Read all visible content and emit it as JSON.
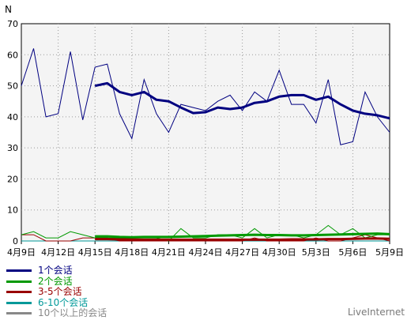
{
  "chart_data": {
    "type": "line",
    "ylabel": "N",
    "ylim": [
      0,
      70
    ],
    "yticks": [
      0,
      10,
      20,
      30,
      40,
      50,
      60,
      70
    ],
    "x_count": 31,
    "x_ticks": [
      {
        "i": 0,
        "label": "4月9日"
      },
      {
        "i": 3,
        "label": "4月12日"
      },
      {
        "i": 6,
        "label": "4月15日"
      },
      {
        "i": 9,
        "label": "4月18日"
      },
      {
        "i": 12,
        "label": "4月21日"
      },
      {
        "i": 15,
        "label": "4月24日"
      },
      {
        "i": 18,
        "label": "4月27日"
      },
      {
        "i": 21,
        "label": "4月30日"
      },
      {
        "i": 24,
        "label": "5月3日"
      },
      {
        "i": 27,
        "label": "5月6日"
      },
      {
        "i": 30,
        "label": "5月9日"
      }
    ],
    "grid": true,
    "legend_position": "bottom-left",
    "series": [
      {
        "name": "1个会话",
        "color": "#000080",
        "values": [
          50,
          62,
          40,
          41,
          61,
          39,
          56,
          57,
          41,
          33,
          52,
          41,
          35,
          44,
          43,
          42,
          45,
          47,
          42,
          48,
          45,
          55,
          44,
          44,
          38,
          52,
          31,
          32,
          48,
          40,
          35
        ]
      },
      {
        "name": "2个会话",
        "color": "#009900",
        "values": [
          2,
          3,
          1,
          1,
          3,
          2,
          1,
          1,
          1,
          1,
          1,
          1,
          0,
          4,
          1,
          1,
          2,
          2,
          1,
          4,
          1,
          2,
          2,
          1,
          2,
          5,
          2,
          4,
          1,
          2,
          2
        ]
      },
      {
        "name": "3-5个会话",
        "color": "#990000",
        "values": [
          2,
          2,
          0,
          0,
          0,
          1,
          1,
          1,
          0,
          0,
          0,
          0,
          0,
          0,
          0,
          0,
          0,
          0,
          0,
          1,
          0,
          0,
          0,
          0,
          1,
          0,
          0,
          1,
          2,
          1,
          0
        ]
      },
      {
        "name": "6-10个会话",
        "color": "#009999",
        "values": [
          0,
          0,
          0,
          0,
          0,
          0,
          0,
          0,
          0,
          0,
          0,
          0,
          0,
          0,
          0,
          0,
          0,
          0,
          0,
          0,
          0,
          0,
          0,
          0,
          0,
          0,
          0,
          0,
          0,
          0,
          0
        ]
      },
      {
        "name": "10个以上的会话",
        "color": "#888888",
        "values": [
          0,
          0,
          0,
          0,
          0,
          0,
          0,
          0,
          0,
          0,
          0,
          0,
          0,
          0,
          0,
          0,
          0,
          0,
          0,
          0,
          0,
          0,
          0,
          0,
          0,
          0,
          0,
          0,
          0,
          0,
          0
        ]
      }
    ],
    "trend_series": [
      {
        "of": "1个会话",
        "color": "#000080",
        "start": 6,
        "values": [
          50,
          50.8,
          48,
          47,
          48,
          45.5,
          45,
          43,
          41.2,
          41.5,
          43,
          42.5,
          43,
          44.5,
          45,
          46.5,
          47,
          47,
          45.5,
          46.5,
          44,
          42,
          41,
          40.5,
          39.5
        ]
      },
      {
        "of": "2个会话",
        "color": "#009900",
        "start": 6,
        "values": [
          1.5,
          1.5,
          1.3,
          1.2,
          1.3,
          1.3,
          1.3,
          1.4,
          1.5,
          1.6,
          1.7,
          1.8,
          1.9,
          2.0,
          1.9,
          1.9,
          1.8,
          1.8,
          1.9,
          2.0,
          2.1,
          2.2,
          2.3,
          2.4,
          2.2
        ]
      },
      {
        "of": "3-5个会话",
        "color": "#990000",
        "start": 6,
        "values": [
          0.6,
          0.6,
          0.5,
          0.5,
          0.4,
          0.4,
          0.4,
          0.4,
          0.4,
          0.4,
          0.4,
          0.4,
          0.4,
          0.4,
          0.4,
          0.4,
          0.5,
          0.5,
          0.5,
          0.6,
          0.6,
          0.7,
          0.8,
          0.8,
          0.7
        ]
      }
    ]
  },
  "brand": "LiveInternet"
}
